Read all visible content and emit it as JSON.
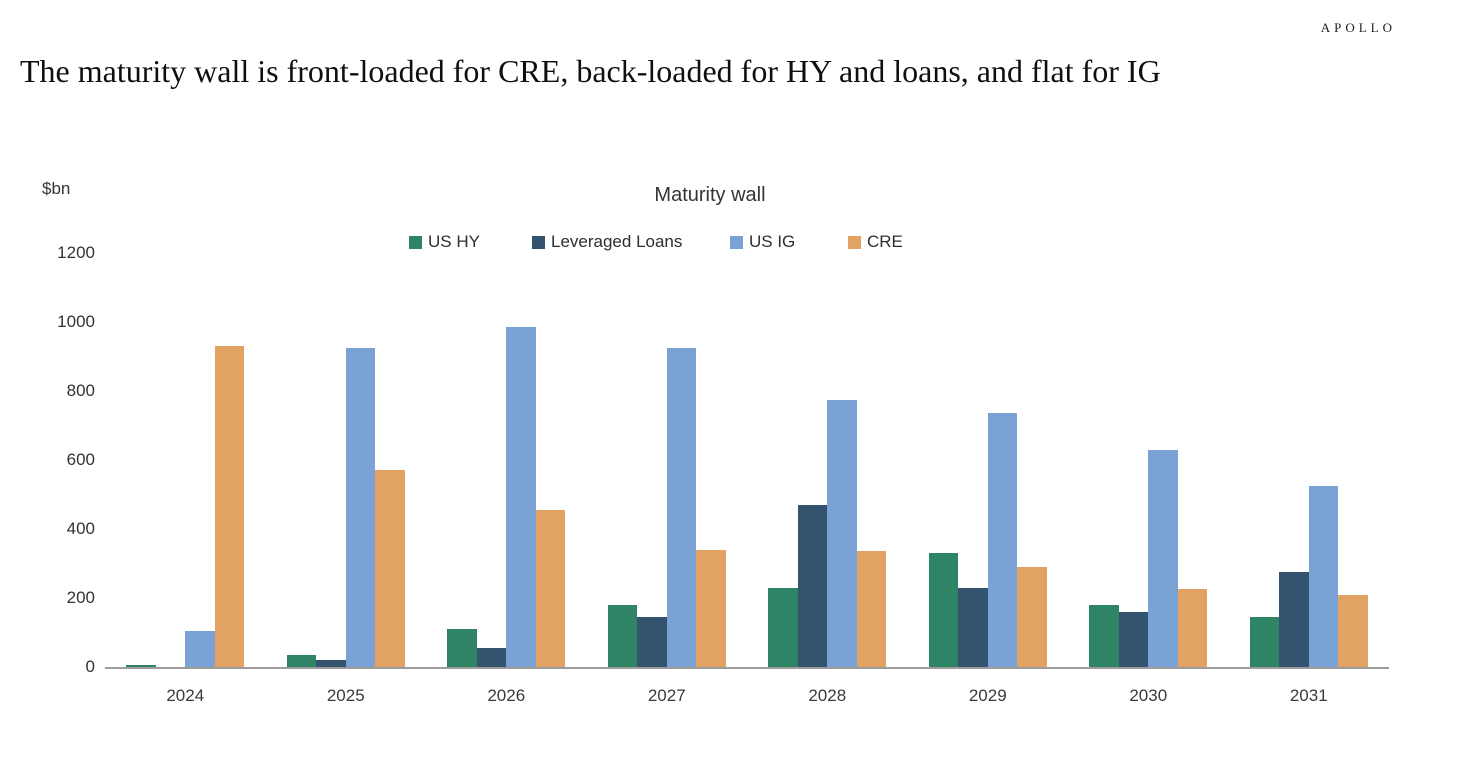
{
  "slide": {
    "logo": "APOLLO",
    "headline": "The maturity wall is front-loaded for CRE, back-loaded for HY and loans, and flat for IG"
  },
  "chart_data": {
    "type": "bar",
    "title": "Maturity wall",
    "ylabel": "$bn",
    "xlabel": "",
    "ylim": [
      0,
      1200
    ],
    "yticks": [
      0,
      200,
      400,
      600,
      800,
      1000,
      1200
    ],
    "grid": false,
    "legend_position": "top",
    "axis_line_color": "#9c9c9c",
    "categories": [
      "2024",
      "2025",
      "2026",
      "2027",
      "2028",
      "2029",
      "2030",
      "2031"
    ],
    "series": [
      {
        "name": "US HY",
        "color": "#2f8465",
        "values": [
          5,
          35,
          110,
          180,
          230,
          330,
          180,
          145
        ]
      },
      {
        "name": "Leveraged Loans",
        "color": "#34536e",
        "values": [
          0,
          20,
          55,
          145,
          470,
          230,
          160,
          275
        ]
      },
      {
        "name": "US IG",
        "color": "#7ba2d5",
        "values": [
          105,
          925,
          985,
          925,
          775,
          735,
          630,
          525
        ]
      },
      {
        "name": "CRE",
        "color": "#e1a263",
        "values": [
          930,
          570,
          455,
          340,
          335,
          290,
          225,
          210
        ]
      }
    ]
  }
}
